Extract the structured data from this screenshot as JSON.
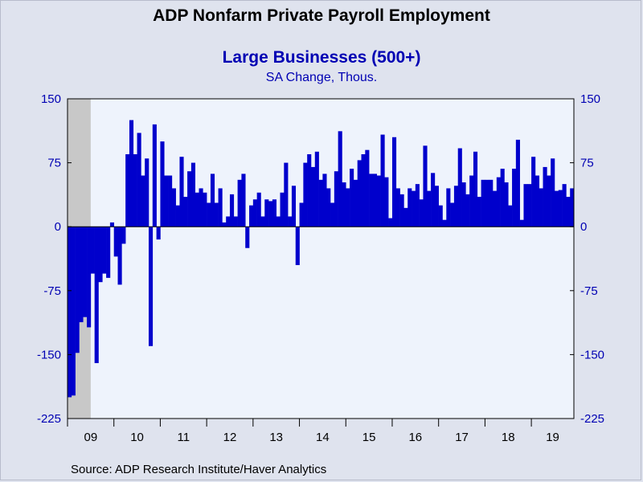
{
  "chart_data": {
    "type": "bar",
    "title": "ADP Nonfarm Private Payroll Employment",
    "subtitle": "Large Businesses (500+)",
    "units": "SA Change, Thous.",
    "source": "Source:  ADP Research Institute/Haver Analytics",
    "ylim": [
      -225,
      150
    ],
    "yticks": [
      "150",
      "75",
      "0",
      "-75",
      "-150",
      "-225"
    ],
    "ytick_values": [
      150,
      75,
      0,
      -75,
      -150,
      -225
    ],
    "x_start_year": "2009",
    "xtick_labels": [
      "09",
      "10",
      "11",
      "12",
      "13",
      "14",
      "15",
      "16",
      "17",
      "18",
      "19"
    ],
    "recession_months": 6,
    "grid": false,
    "colors": {
      "bars": "#0000cc",
      "plot_bg": "#eef3fc",
      "recession": "#c8c8c8",
      "axis_text": "#0000b3"
    },
    "series": [
      {
        "values": [
          -200,
          -198,
          -148,
          -112,
          -106,
          -118,
          -55,
          -160,
          -65,
          -55,
          -60,
          5,
          -35,
          -68,
          -20,
          85,
          125,
          85,
          110,
          60,
          80,
          -140,
          120,
          -15,
          100,
          60,
          60,
          45,
          25,
          82,
          35,
          65,
          75,
          40,
          45,
          40,
          28,
          62,
          28,
          45,
          5,
          12,
          38,
          12,
          55,
          62,
          -25,
          25,
          32,
          40,
          12,
          32,
          30,
          32,
          12,
          40,
          75,
          12,
          48,
          -45,
          28,
          75,
          85,
          70,
          88,
          55,
          62,
          45,
          28,
          65,
          112,
          52,
          45,
          68,
          55,
          78,
          85,
          90,
          62,
          62,
          60,
          108,
          58,
          10,
          105,
          45,
          38,
          22,
          45,
          42,
          50,
          32,
          95,
          42,
          63,
          48,
          25,
          8,
          45,
          28,
          48,
          92,
          52,
          38,
          60,
          88,
          35,
          55,
          55,
          55,
          42,
          58,
          68,
          52,
          25,
          68,
          102,
          8,
          50,
          50,
          82,
          60,
          45,
          70,
          60,
          80,
          42,
          43,
          50,
          35,
          45
        ]
      }
    ]
  }
}
